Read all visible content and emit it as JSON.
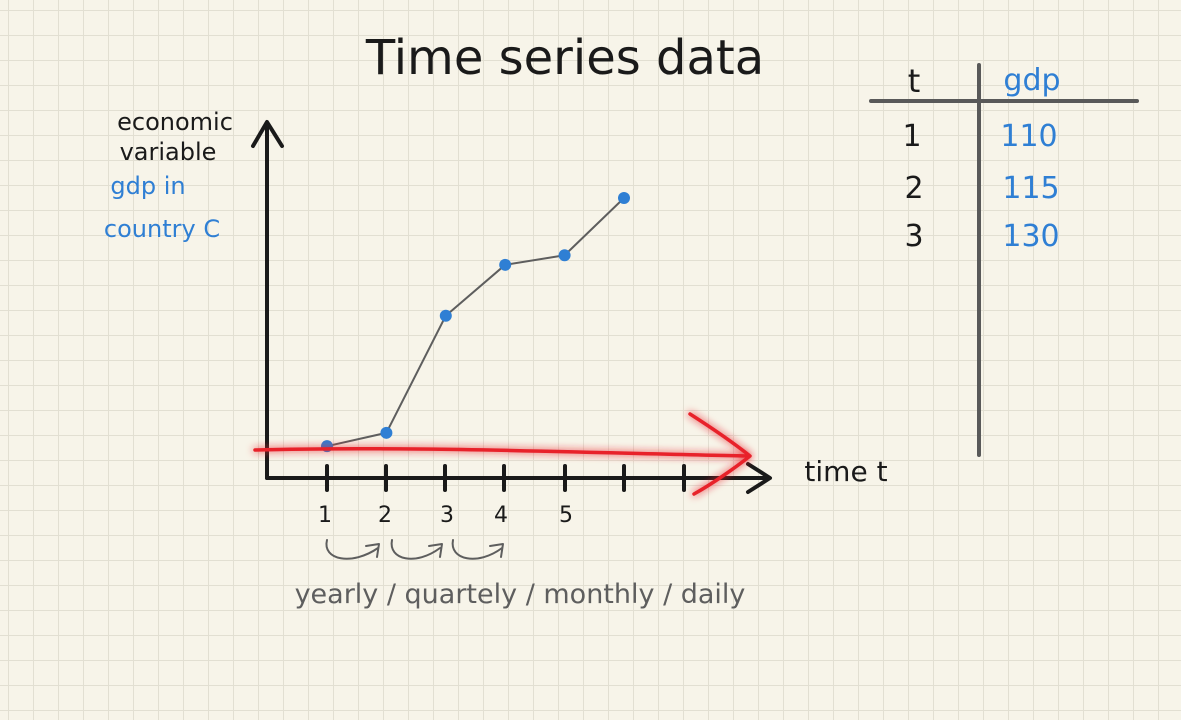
{
  "title": "Time series data",
  "y_axis_label": {
    "line1": "economic",
    "line2": "variable",
    "example_line1": "gdp in",
    "example_line2": "country C"
  },
  "x_axis_label": "time t",
  "x_ticks": [
    "1",
    "2",
    "3",
    "4",
    "5"
  ],
  "frequency_note": "yearly / quartely / monthly / daily",
  "table": {
    "headers": [
      "t",
      "gdp"
    ],
    "rows": [
      [
        "1",
        "110"
      ],
      [
        "2",
        "115"
      ],
      [
        "3",
        "130"
      ]
    ]
  },
  "colors": {
    "ink": "#1a1a1a",
    "blue": "#2f7fd4",
    "line": "#5e5e5e",
    "highlight": "#e8202a"
  },
  "chart_data": {
    "type": "line",
    "x": [
      1,
      2,
      3,
      4,
      5,
      6
    ],
    "values": [
      1.0,
      1.42,
      5.1,
      6.7,
      7.0,
      8.8
    ],
    "xlabel": "time t",
    "ylabel": "economic variable",
    "ylim": [
      0,
      11
    ]
  }
}
